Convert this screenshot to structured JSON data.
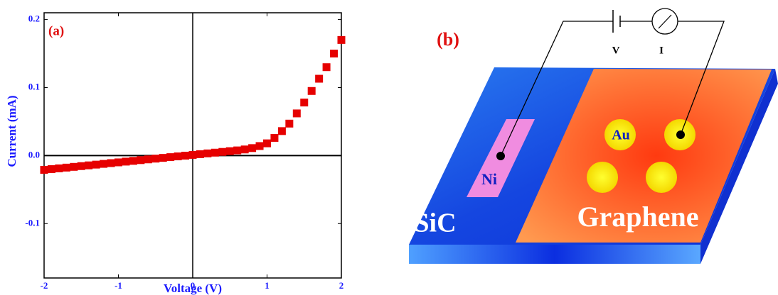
{
  "chart_data": {
    "type": "scatter",
    "annotation": "(a)",
    "xlabel": "Voltage (V)",
    "ylabel": "Current (mA)",
    "x": [
      -2.0,
      -1.9,
      -1.8,
      -1.7,
      -1.6,
      -1.5,
      -1.4,
      -1.3,
      -1.2,
      -1.1,
      -1.0,
      -0.9,
      -0.8,
      -0.7,
      -0.6,
      -0.5,
      -0.4,
      -0.3,
      -0.2,
      -0.1,
      0.0,
      0.1,
      0.2,
      0.3,
      0.4,
      0.5,
      0.6,
      0.7,
      0.8,
      0.9,
      1.0,
      1.1,
      1.2,
      1.3,
      1.4,
      1.5,
      1.6,
      1.7,
      1.8,
      1.9,
      2.0
    ],
    "series": [
      {
        "color": "#e60000",
        "values": [
          -0.021,
          -0.0199,
          -0.0188,
          -0.0177,
          -0.0166,
          -0.0155,
          -0.0144,
          -0.0133,
          -0.0122,
          -0.0111,
          -0.01,
          -0.0089,
          -0.0078,
          -0.0067,
          -0.0056,
          -0.0045,
          -0.0034,
          -0.0023,
          -0.0012,
          -0.0001,
          0.001,
          0.0021,
          0.0032,
          0.0043,
          0.0054,
          0.0065,
          0.0076,
          0.009,
          0.011,
          0.014,
          0.018,
          0.026,
          0.036,
          0.047,
          0.062,
          0.078,
          0.095,
          0.113,
          0.13,
          0.15,
          0.17
        ]
      }
    ],
    "xlim": [
      -2,
      2
    ],
    "ylim": [
      -0.18,
      0.21
    ],
    "xticks": [
      -2,
      -1,
      0,
      1,
      2
    ],
    "yticks": [
      0.2,
      0.1,
      {
        "value": 0,
        "label": "0.0"
      },
      -0.1
    ]
  },
  "diagram": {
    "panel_label": "(b)",
    "voltage": "V",
    "current": "I",
    "gold": "Au",
    "nickel": "Ni",
    "substrate": "SiC",
    "layer": "Graphene"
  }
}
